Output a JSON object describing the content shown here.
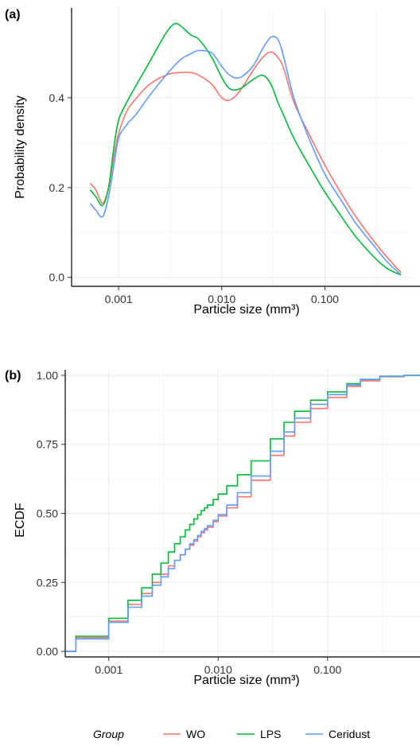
{
  "colors": {
    "WO": "#F8766D",
    "LPS": "#00BA38",
    "Ceridust": "#619CFF"
  },
  "legend": {
    "title": "Group",
    "position": "bottom",
    "entries": [
      {
        "name": "WO",
        "color": "#F8766D"
      },
      {
        "name": "LPS",
        "color": "#00BA38"
      },
      {
        "name": "Ceridust",
        "color": "#619CFF"
      }
    ]
  },
  "chart_data": [
    {
      "panel": "(a)",
      "type": "line",
      "xlabel": "Particle size (mm³)",
      "ylabel": "Probability density",
      "xscale": "log10",
      "xlim": [
        0.00035,
        0.7
      ],
      "ylim": [
        -0.02,
        0.6
      ],
      "xticks": [
        0.001,
        0.01,
        0.1
      ],
      "xtick_labels": [
        "0.001",
        "0.010",
        "0.100"
      ],
      "yticks": [
        0.0,
        0.2,
        0.4
      ],
      "ytick_labels": [
        "0.0",
        "0.2",
        "0.4"
      ],
      "grid": true,
      "series": [
        {
          "name": "WO",
          "x": [
            0.00053,
            0.0006,
            0.0007,
            0.0008,
            0.0009,
            0.001,
            0.0012,
            0.0015,
            0.002,
            0.003,
            0.004,
            0.005,
            0.006,
            0.008,
            0.01,
            0.012,
            0.015,
            0.02,
            0.025,
            0.03,
            0.035,
            0.04,
            0.05,
            0.07,
            0.1,
            0.15,
            0.2,
            0.3,
            0.4,
            0.55
          ],
          "y": [
            0.21,
            0.195,
            0.165,
            0.2,
            0.27,
            0.32,
            0.37,
            0.4,
            0.43,
            0.452,
            0.456,
            0.456,
            0.45,
            0.43,
            0.4,
            0.395,
            0.415,
            0.46,
            0.49,
            0.502,
            0.49,
            0.465,
            0.39,
            0.32,
            0.25,
            0.18,
            0.135,
            0.08,
            0.045,
            0.01
          ]
        },
        {
          "name": "LPS",
          "x": [
            0.00053,
            0.0006,
            0.0007,
            0.0008,
            0.0009,
            0.001,
            0.0012,
            0.0015,
            0.002,
            0.0025,
            0.003,
            0.0035,
            0.004,
            0.005,
            0.006,
            0.008,
            0.01,
            0.012,
            0.015,
            0.02,
            0.025,
            0.03,
            0.035,
            0.04,
            0.05,
            0.07,
            0.1,
            0.15,
            0.2,
            0.3,
            0.4,
            0.55
          ],
          "y": [
            0.195,
            0.18,
            0.16,
            0.2,
            0.29,
            0.35,
            0.39,
            0.43,
            0.48,
            0.52,
            0.55,
            0.565,
            0.56,
            0.54,
            0.53,
            0.49,
            0.445,
            0.42,
            0.42,
            0.44,
            0.45,
            0.43,
            0.39,
            0.36,
            0.31,
            0.25,
            0.19,
            0.13,
            0.09,
            0.045,
            0.02,
            0.005
          ]
        },
        {
          "name": "Ceridust",
          "x": [
            0.00053,
            0.0006,
            0.0007,
            0.0008,
            0.0009,
            0.001,
            0.0012,
            0.0015,
            0.002,
            0.003,
            0.004,
            0.005,
            0.006,
            0.008,
            0.01,
            0.012,
            0.015,
            0.02,
            0.025,
            0.03,
            0.035,
            0.04,
            0.05,
            0.07,
            0.1,
            0.15,
            0.2,
            0.3,
            0.4,
            0.55
          ],
          "y": [
            0.165,
            0.15,
            0.135,
            0.18,
            0.25,
            0.31,
            0.34,
            0.365,
            0.405,
            0.455,
            0.485,
            0.498,
            0.505,
            0.5,
            0.47,
            0.45,
            0.445,
            0.47,
            0.51,
            0.535,
            0.53,
            0.49,
            0.4,
            0.31,
            0.23,
            0.165,
            0.12,
            0.07,
            0.035,
            0.005
          ]
        }
      ]
    },
    {
      "panel": "(b)",
      "type": "line",
      "step": true,
      "xlabel": "Particle size (mm³)",
      "ylabel": "ECDF",
      "xscale": "log10",
      "xlim": [
        0.0004,
        0.7
      ],
      "ylim": [
        -0.02,
        1.02
      ],
      "xticks": [
        0.001,
        0.01,
        0.1
      ],
      "xtick_labels": [
        "0.001",
        "0.010",
        "0.100"
      ],
      "yticks": [
        0.0,
        0.25,
        0.5,
        0.75,
        1.0
      ],
      "ytick_labels": [
        "0.00",
        "0.25",
        "0.50",
        "0.75",
        "1.00"
      ],
      "grid": true,
      "series": [
        {
          "name": "WO",
          "x": [
            0.0004,
            0.0005,
            0.001,
            0.0015,
            0.002,
            0.0025,
            0.003,
            0.0035,
            0.004,
            0.0045,
            0.005,
            0.0055,
            0.006,
            0.0065,
            0.007,
            0.0075,
            0.008,
            0.009,
            0.01,
            0.012,
            0.015,
            0.02,
            0.03,
            0.04,
            0.05,
            0.07,
            0.1,
            0.15,
            0.2,
            0.3,
            0.5,
            0.7
          ],
          "y": [
            0.0,
            0.05,
            0.11,
            0.17,
            0.21,
            0.25,
            0.28,
            0.31,
            0.33,
            0.35,
            0.37,
            0.385,
            0.4,
            0.415,
            0.43,
            0.44,
            0.45,
            0.47,
            0.49,
            0.52,
            0.56,
            0.62,
            0.71,
            0.78,
            0.83,
            0.88,
            0.92,
            0.96,
            0.98,
            0.995,
            1.0,
            1.0
          ]
        },
        {
          "name": "LPS",
          "x": [
            0.0004,
            0.0005,
            0.001,
            0.0015,
            0.002,
            0.0025,
            0.003,
            0.0035,
            0.004,
            0.0045,
            0.005,
            0.0055,
            0.006,
            0.0065,
            0.007,
            0.0075,
            0.008,
            0.009,
            0.01,
            0.012,
            0.015,
            0.02,
            0.03,
            0.04,
            0.05,
            0.07,
            0.1,
            0.15,
            0.2,
            0.3,
            0.5,
            0.7
          ],
          "y": [
            0.0,
            0.055,
            0.12,
            0.185,
            0.23,
            0.28,
            0.32,
            0.36,
            0.39,
            0.415,
            0.44,
            0.46,
            0.48,
            0.495,
            0.51,
            0.52,
            0.53,
            0.55,
            0.57,
            0.6,
            0.64,
            0.69,
            0.77,
            0.83,
            0.87,
            0.91,
            0.94,
            0.97,
            0.985,
            0.997,
            1.0,
            1.0
          ]
        },
        {
          "name": "Ceridust",
          "x": [
            0.0004,
            0.0005,
            0.001,
            0.0015,
            0.002,
            0.0025,
            0.003,
            0.0035,
            0.004,
            0.0045,
            0.005,
            0.0055,
            0.006,
            0.0065,
            0.007,
            0.0075,
            0.008,
            0.009,
            0.01,
            0.012,
            0.015,
            0.02,
            0.03,
            0.04,
            0.05,
            0.07,
            0.1,
            0.15,
            0.2,
            0.3,
            0.5,
            0.7
          ],
          "y": [
            0.0,
            0.045,
            0.105,
            0.16,
            0.2,
            0.24,
            0.27,
            0.3,
            0.33,
            0.35,
            0.37,
            0.39,
            0.405,
            0.42,
            0.435,
            0.445,
            0.455,
            0.475,
            0.495,
            0.53,
            0.575,
            0.635,
            0.725,
            0.795,
            0.845,
            0.895,
            0.93,
            0.965,
            0.985,
            0.996,
            1.0,
            1.0
          ]
        }
      ]
    }
  ]
}
